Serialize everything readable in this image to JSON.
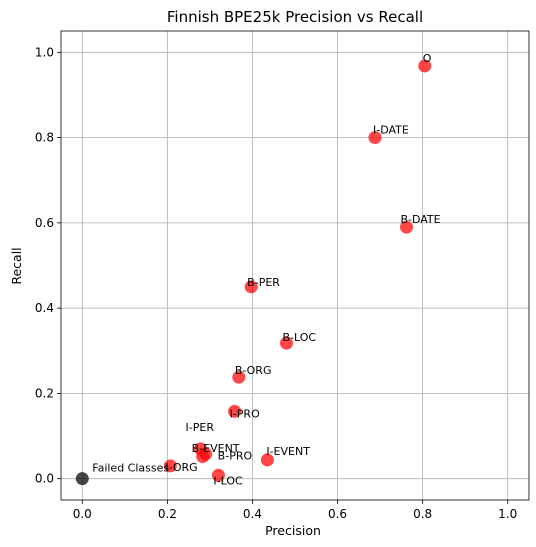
{
  "chart_data": {
    "type": "scatter",
    "title": "Finnish BPE25k Precision vs Recall",
    "xlabel": "Precision",
    "ylabel": "Recall",
    "xlim": [
      -0.05,
      1.05
    ],
    "ylim": [
      -0.05,
      1.05
    ],
    "xticks": [
      "0.0",
      "0.2",
      "0.4",
      "0.6",
      "0.8",
      "1.0"
    ],
    "yticks": [
      "0.0",
      "0.2",
      "0.4",
      "0.6",
      "0.8",
      "1.0"
    ],
    "grid": true,
    "points": [
      {
        "label": "O",
        "x": 0.805,
        "y": 0.968,
        "color": "#ff0000"
      },
      {
        "label": "I-DATE",
        "x": 0.688,
        "y": 0.8,
        "color": "#ff0000"
      },
      {
        "label": "B-DATE",
        "x": 0.762,
        "y": 0.59,
        "color": "#ff0000"
      },
      {
        "label": "B-PER",
        "x": 0.397,
        "y": 0.45,
        "color": "#ff0000"
      },
      {
        "label": "B-LOC",
        "x": 0.48,
        "y": 0.318,
        "color": "#ff0000"
      },
      {
        "label": "B-ORG",
        "x": 0.368,
        "y": 0.238,
        "color": "#ff0000"
      },
      {
        "label": "I-PRO",
        "x": 0.358,
        "y": 0.158,
        "color": "#ff0000"
      },
      {
        "label": "I-PER",
        "x": 0.278,
        "y": 0.07,
        "color": "#ff0000"
      },
      {
        "label": "B-EVENT",
        "x": 0.29,
        "y": 0.058,
        "color": "#ff0000"
      },
      {
        "label": "I-EVENT",
        "x": 0.435,
        "y": 0.044,
        "color": "#ff0000"
      },
      {
        "label": "B-PRO",
        "x": 0.283,
        "y": 0.052,
        "color": "#ff0000"
      },
      {
        "label": "I-ORG",
        "x": 0.207,
        "y": 0.03,
        "color": "#ff0000"
      },
      {
        "label": "I-LOC",
        "x": 0.32,
        "y": 0.008,
        "color": "#ff0000"
      },
      {
        "label": "Failed Classes",
        "x": 0.0,
        "y": 0.0,
        "color": "#000000"
      }
    ]
  }
}
